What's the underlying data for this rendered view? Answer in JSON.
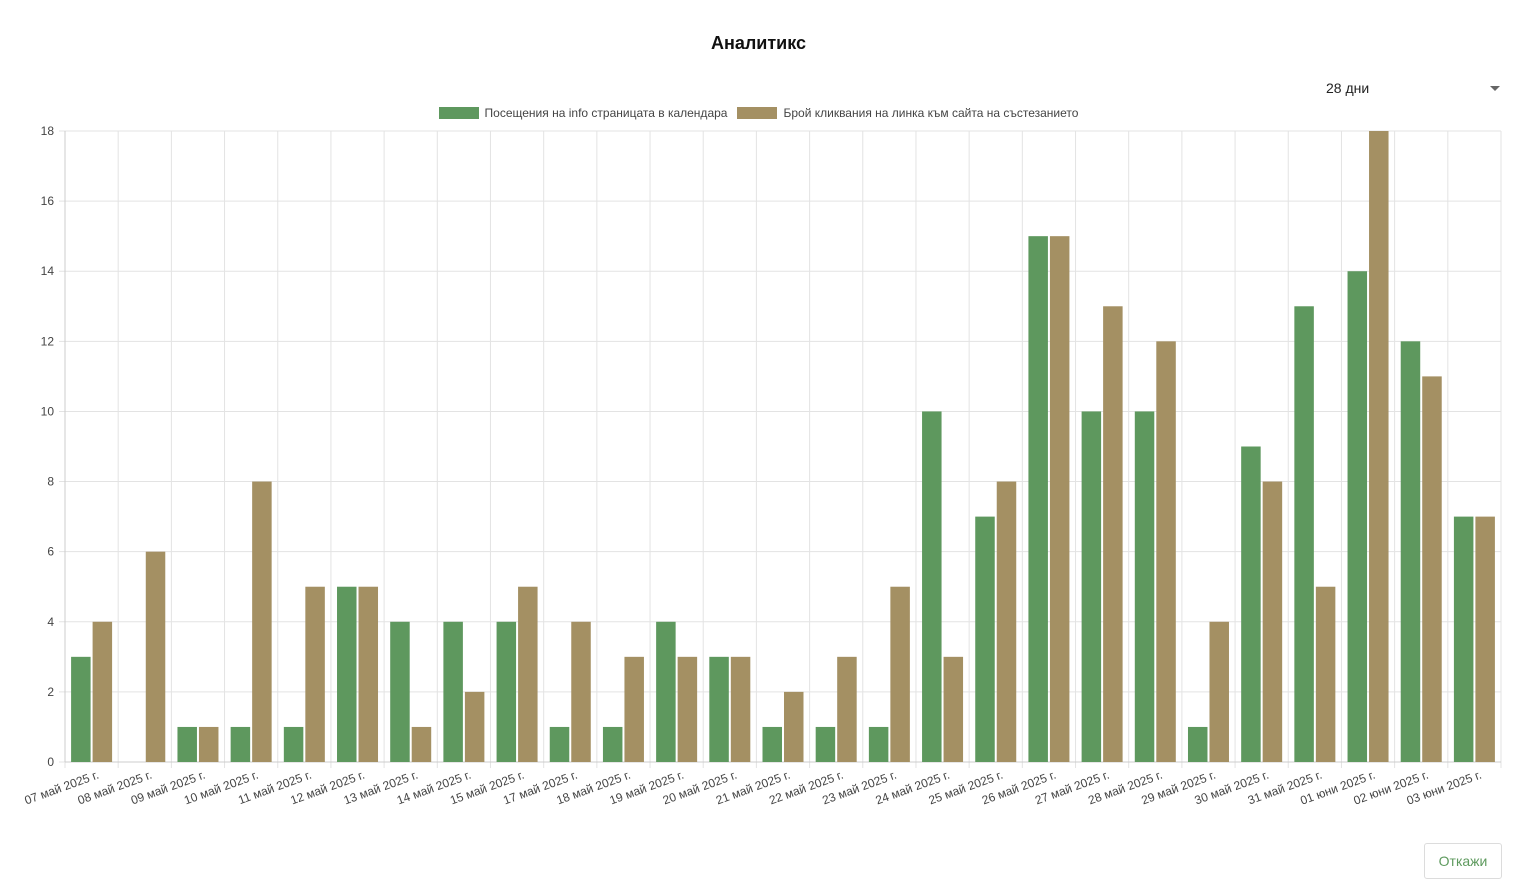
{
  "page": {
    "title": "Аналитикс",
    "range_selected": "28 дни",
    "cancel_label": "Откажи"
  },
  "colors": {
    "series1": "#5e985e",
    "series2": "#a49063",
    "grid": "#e3e3e3",
    "axis": "#cccccc",
    "tick_text": "#444444"
  },
  "chart_data": {
    "type": "bar",
    "title": "Аналитикс",
    "xlabel": "",
    "ylabel": "",
    "ylim": [
      0,
      18
    ],
    "yticks": [
      0,
      2,
      4,
      6,
      8,
      10,
      12,
      14,
      16,
      18
    ],
    "grid": true,
    "legend_position": "top-center",
    "categories": [
      "07 май 2025 г.",
      "08 май 2025 г.",
      "09 май 2025 г.",
      "10 май 2025 г.",
      "11 май 2025 г.",
      "12 май 2025 г.",
      "13 май 2025 г.",
      "14 май 2025 г.",
      "15 май 2025 г.",
      "17 май 2025 г.",
      "18 май 2025 г.",
      "19 май 2025 г.",
      "20 май 2025 г.",
      "21 май 2025 г.",
      "22 май 2025 г.",
      "23 май 2025 г.",
      "24 май 2025 г.",
      "25 май 2025 г.",
      "26 май 2025 г.",
      "27 май 2025 г.",
      "28 май 2025 г.",
      "29 май 2025 г.",
      "30 май 2025 г.",
      "31 май 2025 г.",
      "01 юни 2025 г.",
      "02 юни 2025 г.",
      "03 юни 2025 г."
    ],
    "series": [
      {
        "name": "Посещения на info страницата в календара",
        "values": [
          3,
          0,
          1,
          1,
          1,
          5,
          4,
          4,
          4,
          1,
          1,
          4,
          3,
          1,
          1,
          1,
          10,
          7,
          15,
          10,
          10,
          1,
          9,
          13,
          14,
          12,
          7
        ]
      },
      {
        "name": "Брой кликвания на линка към сайта на състезанието",
        "values": [
          4,
          6,
          1,
          8,
          5,
          5,
          1,
          2,
          5,
          4,
          3,
          3,
          3,
          2,
          3,
          5,
          3,
          8,
          15,
          13,
          12,
          4,
          8,
          5,
          18,
          11,
          7
        ]
      }
    ]
  }
}
